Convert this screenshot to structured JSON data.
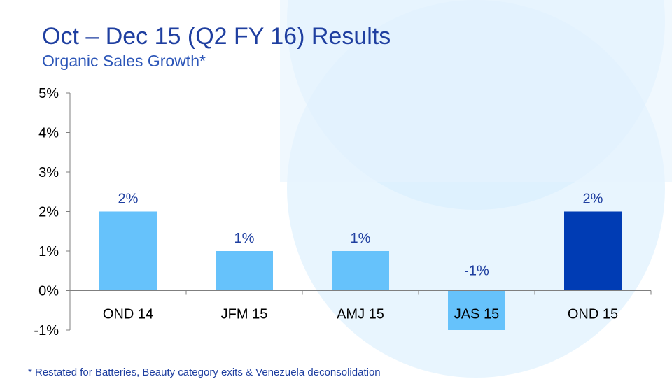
{
  "slide": {
    "title": "Oct – Dec 15 (Q2 FY 16) Results",
    "subtitle": "Organic Sales Growth*",
    "footnote": "* Restated for Batteries, Beauty category exits & Venezuela deconsolidation"
  },
  "colors": {
    "title": "#1f3fa0",
    "bar_default": "#66c2fb",
    "bar_highlight": "#003cb4",
    "label": "#1f3fa0",
    "axis_text": "#000000",
    "bg_circle": "#cfe9fc"
  },
  "chart_data": {
    "type": "bar",
    "title": "Organic Sales Growth*",
    "xlabel": "",
    "ylabel": "",
    "categories": [
      "OND 14",
      "JFM 15",
      "AMJ 15",
      "JAS 15",
      "OND 15"
    ],
    "values": [
      2,
      1,
      1,
      -1,
      2
    ],
    "data_labels": [
      "2%",
      "1%",
      "1%",
      "-1%",
      "2%"
    ],
    "highlight_index": 4,
    "ylim": [
      -1,
      5
    ],
    "yticks": [
      -1,
      0,
      1,
      2,
      3,
      4,
      5
    ],
    "ytick_labels": [
      "-1%",
      "0%",
      "1%",
      "2%",
      "3%",
      "4%",
      "5%"
    ],
    "grid": false,
    "legend": "none"
  }
}
